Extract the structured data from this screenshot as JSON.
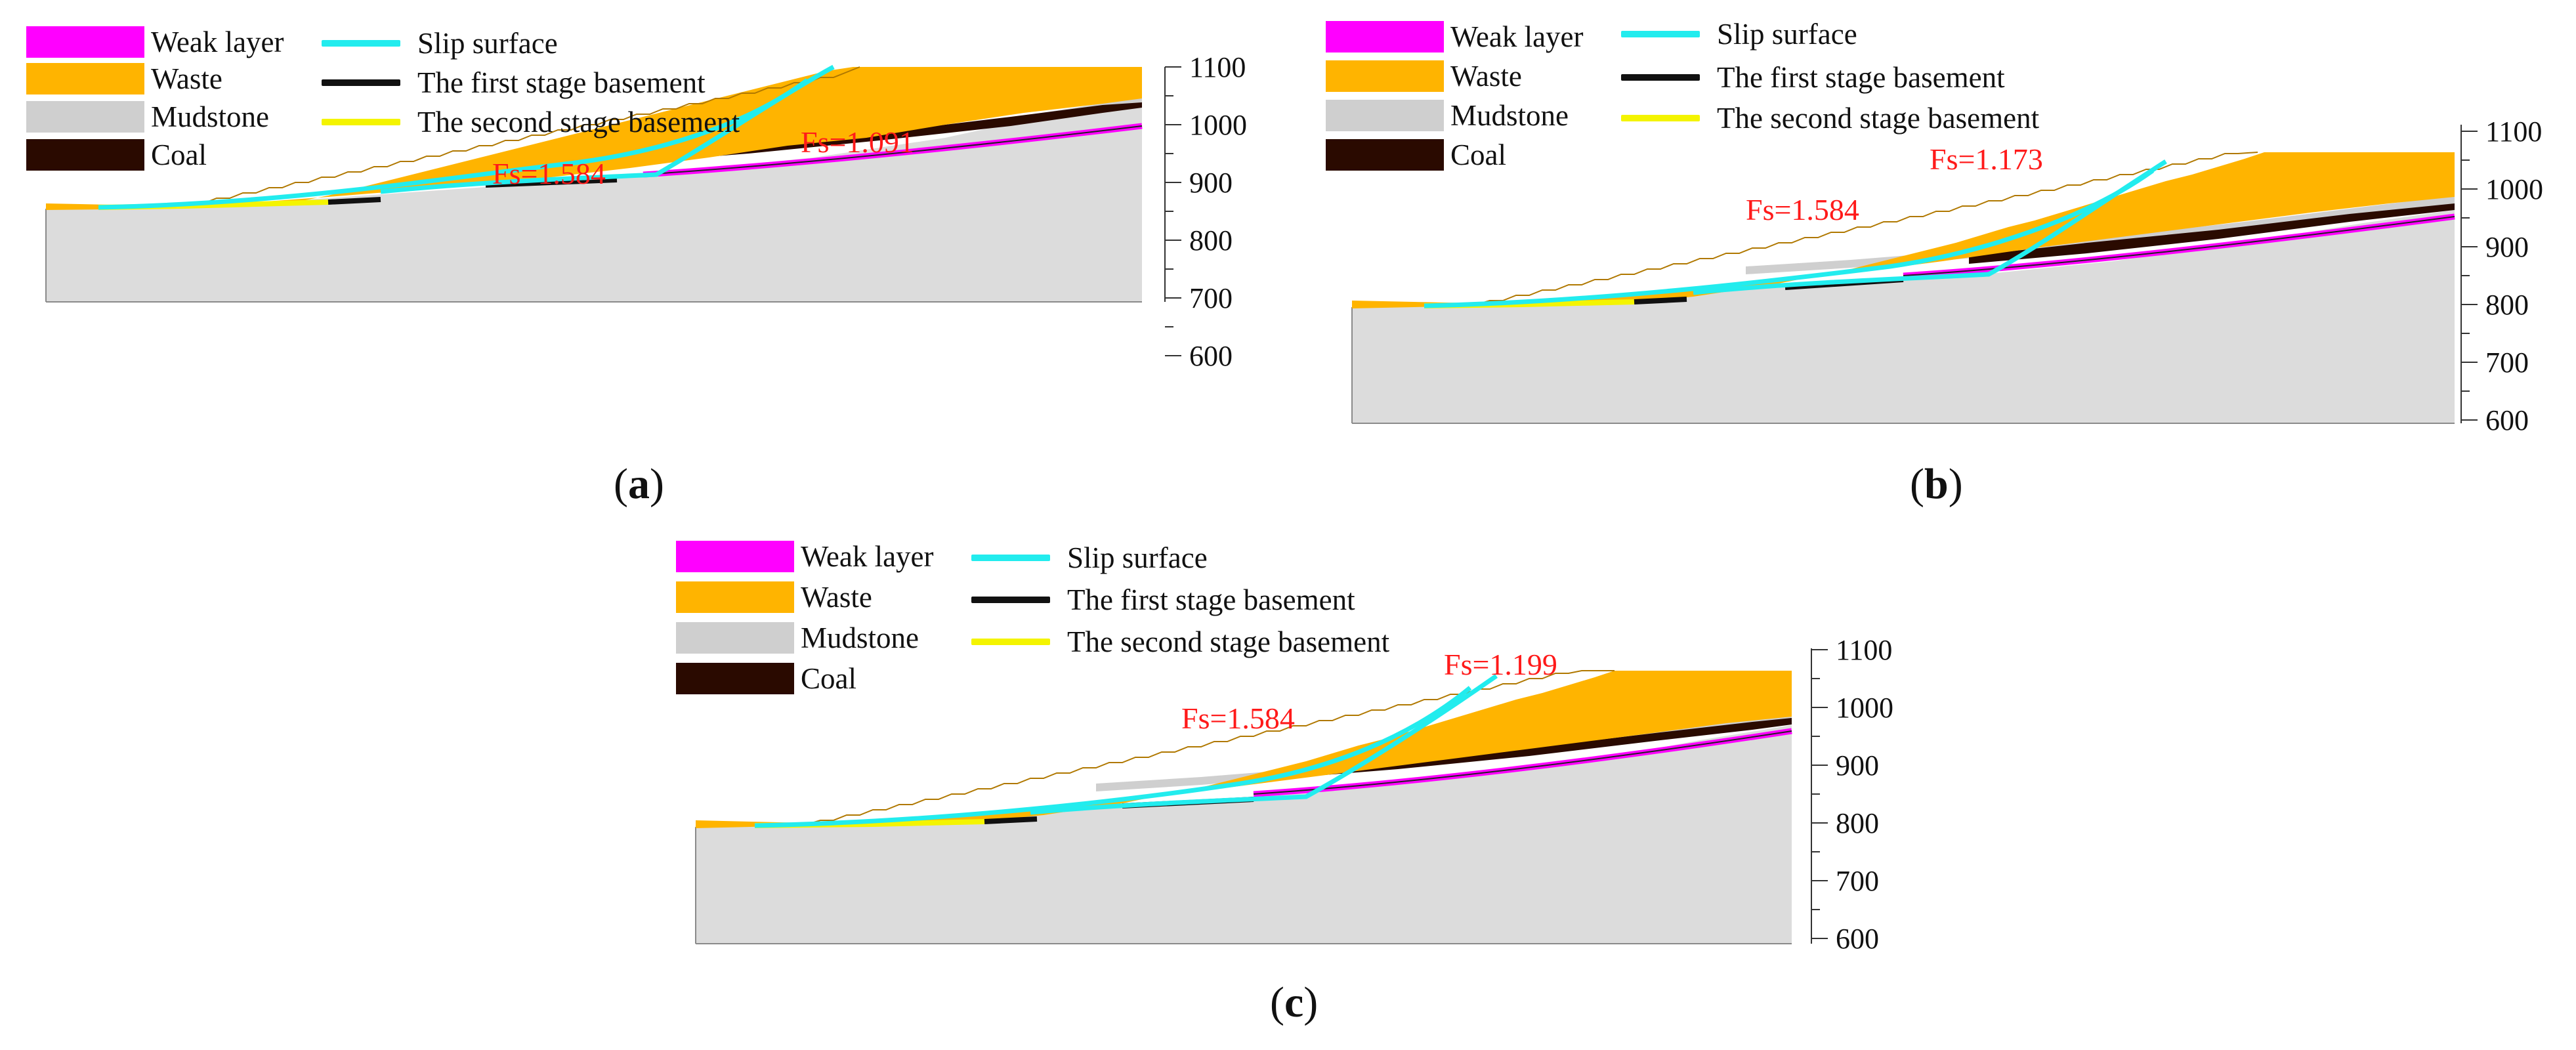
{
  "legend": {
    "weak_layer": {
      "label": "Weak layer",
      "color": "#ff00ff"
    },
    "waste": {
      "label": "Waste",
      "color": "#ffb400"
    },
    "mudstone": {
      "label": "Mudstone",
      "color": "#cfcfcf"
    },
    "coal": {
      "label": "Coal",
      "color": "#2a0a00"
    },
    "slip_surface": {
      "label": "Slip surface",
      "color": "#22ecee"
    },
    "first_basement": {
      "label": "The first stage basement",
      "color": "#111111"
    },
    "second_basement": {
      "label": "The second stage basement",
      "color": "#f4f400"
    }
  },
  "axis": {
    "ticks": [
      "1100",
      "1000",
      "900",
      "800",
      "700",
      "600"
    ]
  },
  "colors": {
    "bedrock": "#dcdcdc",
    "label_red": "#ff1a1a"
  },
  "panels": [
    {
      "id": "a",
      "caption_open": "(",
      "caption_letter": "a",
      "caption_close": ")",
      "fs_lower": "Fs=1.584",
      "fs_upper": "Fs=1.091"
    },
    {
      "id": "b",
      "caption_open": "(",
      "caption_letter": "b",
      "caption_close": ")",
      "fs_lower": "Fs=1.584",
      "fs_upper": "Fs=1.173"
    },
    {
      "id": "c",
      "caption_open": "(",
      "caption_letter": "c",
      "caption_close": ")",
      "fs_lower": "Fs=1.584",
      "fs_upper": "Fs=1.199"
    }
  ]
}
